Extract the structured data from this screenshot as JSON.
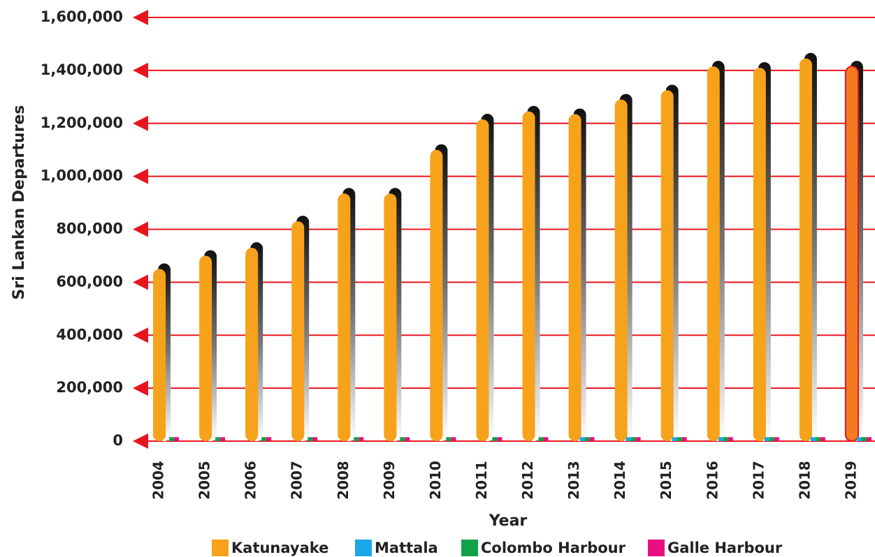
{
  "chart_data": {
    "type": "bar",
    "x_label": "Year",
    "y_label": "Sri Lankan Departures",
    "categories": [
      "2004",
      "2005",
      "2006",
      "2007",
      "2008",
      "2009",
      "2010",
      "2011",
      "2012",
      "2013",
      "2014",
      "2015",
      "2016",
      "2017",
      "2018",
      "2019"
    ],
    "series": [
      {
        "name": "Katunayake",
        "color": "#f7a21b",
        "values": [
          650000,
          700000,
          730000,
          830000,
          935000,
          935000,
          1100000,
          1215000,
          1245000,
          1235000,
          1290000,
          1325000,
          1415000,
          1410000,
          1445000,
          1415000
        ]
      },
      {
        "name": "Mattala",
        "color": "#1aa8e8",
        "values": [
          0,
          0,
          0,
          0,
          0,
          0,
          0,
          0,
          0,
          15000,
          15000,
          15000,
          15000,
          15000,
          15000,
          15000
        ]
      },
      {
        "name": "Colombo Harbour",
        "color": "#12a14b",
        "values": [
          15000,
          15000,
          15000,
          15000,
          15000,
          15000,
          15000,
          15000,
          15000,
          15000,
          15000,
          15000,
          15000,
          15000,
          15000,
          15000
        ]
      },
      {
        "name": "Galle Harbour",
        "color": "#e8107f",
        "values": [
          15000,
          15000,
          15000,
          15000,
          15000,
          15000,
          15000,
          15000,
          15000,
          15000,
          15000,
          15000,
          15000,
          15000,
          15000,
          15000
        ]
      }
    ],
    "highlight": {
      "category": "2019",
      "color": "#f47a20",
      "border": "#e8151e"
    },
    "grid_color": "#e8151e",
    "ylim": [
      0,
      1600000
    ],
    "yticks": [
      0,
      {
        "value": 200000,
        "label": "200,000"
      },
      {
        "value": 400000,
        "label": "400,000"
      },
      {
        "value": 600000,
        "label": "600,000"
      },
      {
        "value": 800000,
        "label": "800,000"
      },
      {
        "value": 1000000,
        "label": "1,000,000"
      },
      {
        "value": 1200000,
        "label": "1,200,000"
      },
      {
        "value": 1400000,
        "label": "1,400,000"
      },
      {
        "value": 1600000,
        "label": "1,600,000"
      }
    ],
    "grid": true,
    "legend": "bottom"
  }
}
